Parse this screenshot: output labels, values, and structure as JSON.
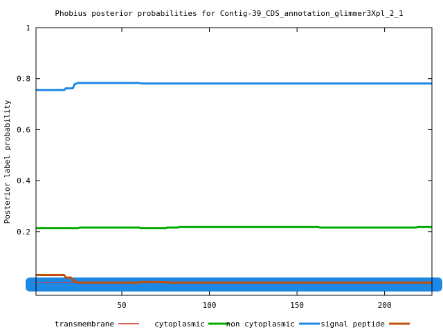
{
  "chart_data": {
    "type": "line",
    "title": "Phobius posterior probabilities for Contig-39_CDS_annotation_glimmer3Xpl_2_1",
    "xlabel": "",
    "ylabel": "Posterior label probability",
    "xlim": [
      1,
      227
    ],
    "ylim": [
      -0.05,
      1
    ],
    "x_ticks": [
      50,
      100,
      150,
      200
    ],
    "y_ticks": [
      0.2,
      0.4,
      0.6,
      0.8,
      1
    ],
    "y_tick_labels": [
      "0.2",
      "0.4",
      "0.6",
      "0.8",
      "1"
    ],
    "grid": false,
    "legend_position": "bottom",
    "series": [
      {
        "name": "transmembrane",
        "color": "#e03020",
        "style": "dashed",
        "x": [
          1,
          227
        ],
        "y": [
          0.0,
          0.0
        ]
      },
      {
        "name": "cytoplasmic",
        "color": "#00aa00",
        "style": "solid",
        "x": [],
        "y": []
      },
      {
        "name": "non cytoplasmic",
        "color": "#1e88e5",
        "style": "solid",
        "x": [
          1,
          17,
          18,
          22,
          23,
          25,
          60,
          61,
          227
        ],
        "y": [
          0.755,
          0.755,
          0.762,
          0.762,
          0.778,
          0.783,
          0.783,
          0.781,
          0.781
        ]
      },
      {
        "name": "signal peptide",
        "color": "#c0500a",
        "style": "solid",
        "x": [
          1,
          17,
          18,
          21,
          22,
          25,
          60,
          61,
          75,
          76,
          227
        ],
        "y": [
          0.03,
          0.03,
          0.02,
          0.02,
          0.01,
          0.0,
          0.0,
          0.003,
          0.003,
          0.0,
          0.0
        ]
      },
      {
        "name": "",
        "color": "#00aa00",
        "style": "solid",
        "x": [
          1,
          25,
          26,
          60,
          61,
          75,
          76,
          82,
          83,
          162,
          163,
          218,
          219,
          227
        ],
        "y": [
          0.214,
          0.214,
          0.216,
          0.216,
          0.214,
          0.214,
          0.216,
          0.216,
          0.218,
          0.218,
          0.216,
          0.216,
          0.218,
          0.218
        ]
      }
    ],
    "band": {
      "color": "#1e88e5",
      "y_low": -0.035,
      "y_high": 0.02
    }
  }
}
